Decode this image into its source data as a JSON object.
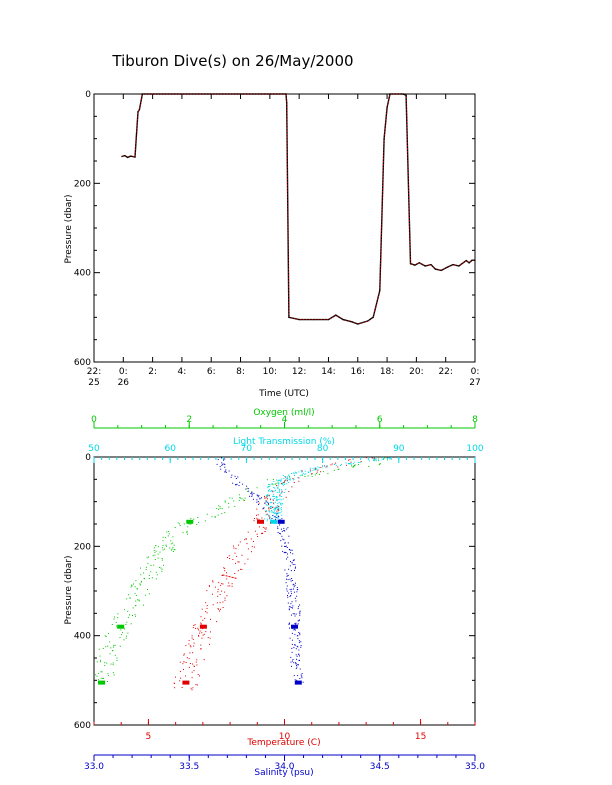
{
  "title": "Tiburon Dive(s) on 26/May/2000",
  "colors": {
    "axis": "#000000",
    "trace": "#000000",
    "trace_overlay": "#e00000",
    "oxygen": "#00c800",
    "light": "#00d8e8",
    "temperature": "#e00000",
    "salinity": "#0000c8"
  },
  "chart_data": [
    {
      "type": "line",
      "title": "Tiburon Dive(s) on 26/May/2000",
      "xlabel": "Time (UTC)",
      "ylabel": "Pressure (dbar)",
      "x_unit": "hours since 22:00 on 25 May 2000",
      "xlim": [
        0,
        26
      ],
      "ylim": [
        600,
        0
      ],
      "y_ticks": [
        0,
        200,
        400,
        600
      ],
      "x_ticks": [
        {
          "x": 0,
          "line1": "22:",
          "line2": "25"
        },
        {
          "x": 2,
          "line1": "0:",
          "line2": "26"
        },
        {
          "x": 4,
          "line1": "2:",
          "line2": ""
        },
        {
          "x": 6,
          "line1": "4:",
          "line2": ""
        },
        {
          "x": 8,
          "line1": "6:",
          "line2": ""
        },
        {
          "x": 10,
          "line1": "8:",
          "line2": ""
        },
        {
          "x": 12,
          "line1": "10:",
          "line2": ""
        },
        {
          "x": 14,
          "line1": "12:",
          "line2": ""
        },
        {
          "x": 16,
          "line1": "14:",
          "line2": ""
        },
        {
          "x": 18,
          "line1": "16:",
          "line2": ""
        },
        {
          "x": 20,
          "line1": "18:",
          "line2": ""
        },
        {
          "x": 22,
          "line1": "20:",
          "line2": ""
        },
        {
          "x": 24,
          "line1": "22:",
          "line2": ""
        },
        {
          "x": 26,
          "line1": "0:",
          "line2": "27"
        }
      ],
      "series": [
        {
          "name": "Pressure",
          "x": [
            1.9,
            2.1,
            2.3,
            2.5,
            2.8,
            2.9,
            3.0,
            3.1,
            3.3,
            13.1,
            13.15,
            13.3,
            14.0,
            15.0,
            16.0,
            16.5,
            17.0,
            17.6,
            18.0,
            18.7,
            18.9,
            19.05,
            19.5,
            19.8,
            20.0,
            20.2,
            21.1,
            21.3,
            21.6,
            21.9,
            22.2,
            22.6,
            23.0,
            23.3,
            23.7,
            24.1,
            24.5,
            24.9,
            25.4,
            25.6,
            25.8,
            26.0
          ],
          "y": [
            140,
            138,
            142,
            139,
            141,
            90,
            40,
            35,
            0,
            0,
            20,
            500,
            505,
            505,
            505,
            495,
            505,
            510,
            515,
            508,
            503,
            500,
            440,
            100,
            30,
            0,
            0,
            3,
            380,
            383,
            378,
            385,
            382,
            392,
            395,
            388,
            382,
            385,
            373,
            378,
            372,
            372
          ]
        }
      ]
    },
    {
      "type": "scatter",
      "ylabel": "Pressure (dbar)",
      "ylim": [
        600,
        0
      ],
      "y_ticks": [
        0,
        200,
        400,
        600
      ],
      "axes": [
        {
          "name": "Oxygen (ml/l)",
          "position": "top-outer",
          "range": [
            0,
            8
          ],
          "ticks": [
            0,
            2,
            4,
            6,
            8
          ],
          "color_key": "oxygen"
        },
        {
          "name": "Light Transmission (%)",
          "position": "top-inner",
          "range": [
            50,
            100
          ],
          "ticks": [
            50,
            60,
            70,
            80,
            90,
            100
          ],
          "color_key": "light"
        },
        {
          "name": "Temperature (C)",
          "position": "bottom-inner",
          "range": [
            3,
            17
          ],
          "ticks": [
            5,
            10,
            15
          ],
          "color_key": "temperature"
        },
        {
          "name": "Salinity (psu)",
          "position": "bottom-outer",
          "range": [
            33.0,
            35.0
          ],
          "ticks": [
            33.0,
            33.5,
            34.0,
            34.5,
            35.0
          ],
          "color_key": "salinity"
        }
      ],
      "series": [
        {
          "name": "Oxygen (ml/l)",
          "color_key": "oxygen",
          "p": [
            0,
            15,
            30,
            40,
            50,
            70,
            100,
            130,
            145,
            160,
            200,
            250,
            300,
            350,
            380,
            420,
            470,
            505
          ],
          "v": [
            6.2,
            5.8,
            5.0,
            4.5,
            3.8,
            3.3,
            2.9,
            2.4,
            2.0,
            1.8,
            1.5,
            1.2,
            0.95,
            0.7,
            0.55,
            0.35,
            0.2,
            0.15
          ]
        },
        {
          "name": "Light Transmission (%)",
          "color_key": "light",
          "p": [
            0,
            10,
            20,
            40,
            60,
            80,
            100,
            145
          ],
          "v": [
            89,
            85,
            80,
            76,
            74,
            73.8,
            73.6,
            73.5
          ]
        },
        {
          "name": "Temperature (C)",
          "color_key": "temperature",
          "p": [
            0,
            10,
            25,
            40,
            60,
            100,
            145,
            180,
            250,
            300,
            350,
            380,
            420,
            470,
            520
          ],
          "v": [
            13.0,
            12.4,
            11.2,
            10.5,
            10.0,
            9.5,
            9.1,
            8.7,
            8.0,
            7.5,
            7.2,
            7.0,
            6.8,
            6.5,
            6.3
          ]
        },
        {
          "name": "Salinity (psu)",
          "color_key": "salinity",
          "p": [
            0,
            20,
            40,
            60,
            80,
            100,
            145,
            180,
            220,
            260,
            300,
            340,
            380,
            420,
            460,
            505
          ],
          "v": [
            33.65,
            33.68,
            33.72,
            33.76,
            33.82,
            33.88,
            33.98,
            34.0,
            34.02,
            34.03,
            34.04,
            34.05,
            34.05,
            34.06,
            34.06,
            34.07
          ]
        }
      ]
    }
  ]
}
